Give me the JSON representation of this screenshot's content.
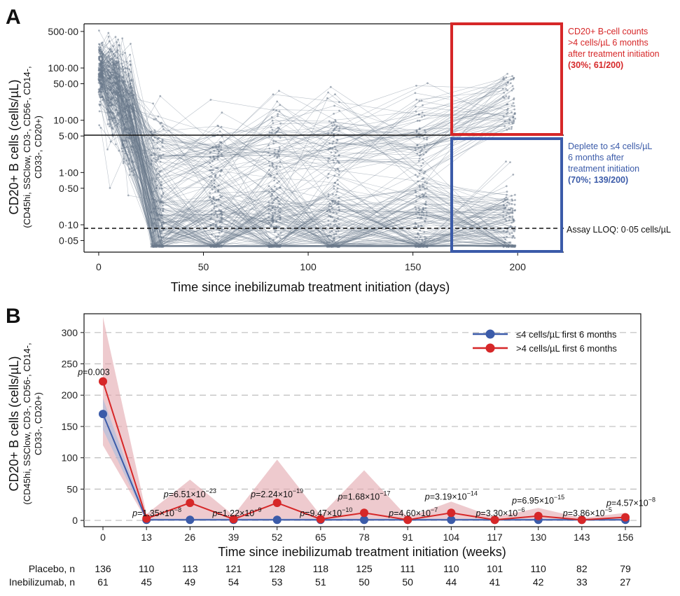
{
  "colors": {
    "red": "#d62728",
    "blue": "#3b5ba9",
    "spaghetti": "#6b7a8c",
    "red_band": "#e3a7ae",
    "blue_band": "#a9bde0"
  },
  "panelA": {
    "letter": "A",
    "ylabel_main": "CD20+ B cells (cells/µL)",
    "ylabel_sub1": "(CD45hi, SSClow, CD3-, CD56-, CD14-,",
    "ylabel_sub2": "CD33-, CD20+)",
    "xlabel": "Time since inebilizumab treatment initiation (days)",
    "annotation_red": [
      "CD20+ B-cell counts",
      ">4 cells/µL 6 months",
      "after treatment initiation",
      "(30%; 61/200)"
    ],
    "annotation_blue": [
      "Deplete to ≤4 cells/µL",
      "6 months after",
      "treatment initiation",
      "(70%; 139/200)"
    ],
    "lloq_label": "Assay LLOQ: 0·05 cells/µL"
  },
  "panelB": {
    "letter": "B",
    "ylabel_main": "CD20+ B cells (cells/µL)",
    "ylabel_sub1": "(CD45hi, SSClow, CD3-, CD56-, CD14-,",
    "ylabel_sub2": "CD33-, CD20+)",
    "xlabel": "Time since inebilizumab treatment initiation (weeks)",
    "legend": [
      "≤4 cells/µL first 6 months",
      ">4 cells/µL first 6 months"
    ],
    "n_table": {
      "row_labels": [
        "Placebo, n",
        "Inebilizumab, n"
      ],
      "placebo": [
        "136",
        "110",
        "113",
        "121",
        "128",
        "118",
        "125",
        "111",
        "110",
        "101",
        "110",
        "82",
        "79"
      ],
      "inebilizumab": [
        "61",
        "45",
        "49",
        "54",
        "53",
        "51",
        "50",
        "50",
        "44",
        "41",
        "42",
        "33",
        "27"
      ]
    }
  },
  "chart_data": [
    {
      "type": "line",
      "panel": "A",
      "scale_y": "log",
      "xlabel": "Time since inebilizumab treatment initiation (days)",
      "ylabel": "CD20+ B cells (cells/µL) (CD45hi, SSClow, CD3-, CD56-, CD14-, CD33-, CD20+)",
      "x_ticks": [
        0,
        50,
        100,
        150,
        200
      ],
      "y_ticks": [
        0.05,
        0.1,
        0.5,
        1,
        5,
        10,
        50,
        100,
        500
      ],
      "y_tick_labels": [
        "0·05",
        "0·10",
        "0·50",
        "1·00",
        "5·00",
        "10·00",
        "50·00",
        "100·00",
        "500·00"
      ],
      "xlim": [
        -7,
        222
      ],
      "ylim": [
        0.03,
        700
      ],
      "threshold_line_y": 4,
      "lloq_line_y": 0.05,
      "groups": [
        {
          "name": ">4 cells/µL 6 months after treatment initiation",
          "percent": 30,
          "count": "61/200"
        },
        {
          "name": "≤4 cells/µL 6 months after treatment initiation",
          "percent": 70,
          "count": "139/200"
        }
      ],
      "visit_days": [
        0,
        7,
        14,
        28,
        56,
        84,
        112,
        154,
        196
      ],
      "n_subjects": 200
    },
    {
      "type": "line",
      "panel": "B",
      "xlabel": "Time since inebilizumab treatment initiation (weeks)",
      "ylabel": "CD20+ B cells (cells/µL) (CD45hi, SSClow, CD3-, CD56-, CD14-, CD33-, CD20+)",
      "x": [
        0,
        13,
        26,
        39,
        52,
        65,
        78,
        91,
        104,
        117,
        130,
        143,
        156
      ],
      "ylim": [
        -10,
        330
      ],
      "y_ticks": [
        0,
        50,
        100,
        150,
        200,
        250,
        300
      ],
      "grid": "horizontal dashed",
      "legend_position": "top-right",
      "series": [
        {
          "name": "≤4 cells/µL first 6 months",
          "color": "#3b5ba9",
          "values": [
            170,
            1,
            1,
            1,
            1,
            1,
            1,
            1,
            1,
            1,
            1,
            1,
            1
          ],
          "lower": [
            145,
            0,
            0,
            0,
            0,
            0,
            0,
            0,
            0,
            0,
            0,
            0,
            0
          ],
          "upper": [
            195,
            3,
            3,
            3,
            3,
            3,
            3,
            3,
            3,
            3,
            3,
            3,
            3
          ]
        },
        {
          "name": ">4 cells/µL first 6 months",
          "color": "#d62728",
          "values": [
            222,
            3,
            28,
            2,
            28,
            2,
            12,
            1,
            12,
            1,
            7,
            1,
            5
          ],
          "lower": [
            120,
            0,
            0,
            0,
            0,
            0,
            0,
            0,
            0,
            0,
            0,
            0,
            0
          ],
          "upper": [
            325,
            10,
            65,
            8,
            97,
            8,
            80,
            5,
            30,
            5,
            20,
            4,
            12
          ]
        }
      ],
      "p_values": [
        {
          "x": 0,
          "text": "p=0.003"
        },
        {
          "x": 13,
          "text": "p=1.35×10-8"
        },
        {
          "x": 26,
          "text": "p=6.51×10-23"
        },
        {
          "x": 39,
          "text": "p=1.22×10-9"
        },
        {
          "x": 52,
          "text": "p=2.24×10-19"
        },
        {
          "x": 65,
          "text": "p=9.47×10-10"
        },
        {
          "x": 78,
          "text": "p=1.68×10-17"
        },
        {
          "x": 91,
          "text": "p=4.60×10-7"
        },
        {
          "x": 104,
          "text": "p=3.19×10-14"
        },
        {
          "x": 117,
          "text": "p=3.30×10-6"
        },
        {
          "x": 130,
          "text": "p=6.95×10-15"
        },
        {
          "x": 143,
          "text": "p=3.86×10-5"
        },
        {
          "x": 156,
          "text": "p=4.57×10-8"
        }
      ]
    }
  ]
}
